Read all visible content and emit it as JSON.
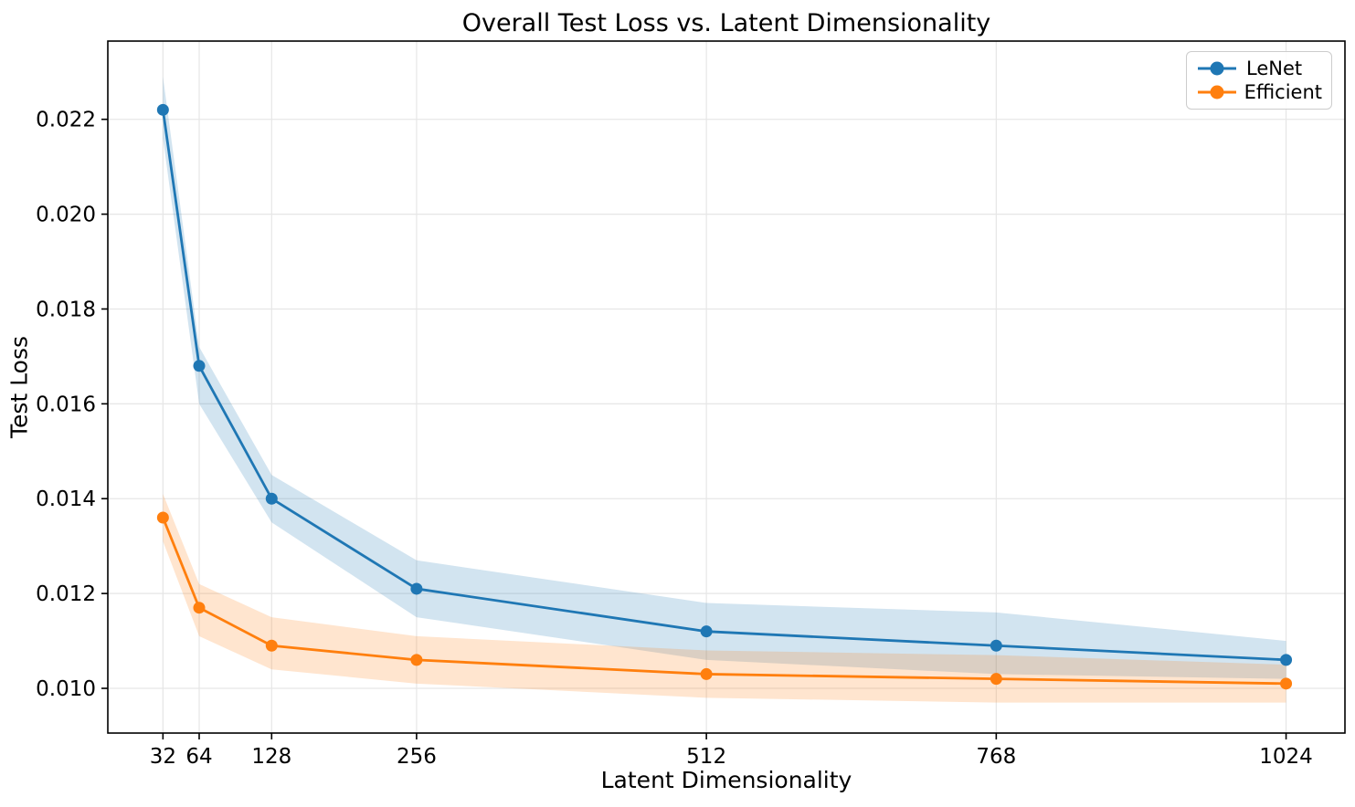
{
  "chart_data": {
    "type": "line",
    "title": "Overall Test Loss vs. Latent Dimensionality",
    "xlabel": "Latent Dimensionality",
    "ylabel": "Test Loss",
    "x": [
      32,
      64,
      128,
      256,
      512,
      768,
      1024
    ],
    "xtick_labels": [
      "32",
      "64",
      "128",
      "256",
      "512",
      "768",
      "1024"
    ],
    "yticks": [
      0.01,
      0.012,
      0.014,
      0.016,
      0.018,
      0.02,
      0.022
    ],
    "ytick_labels": [
      "0.010",
      "0.012",
      "0.014",
      "0.016",
      "0.018",
      "0.020",
      "0.022"
    ],
    "xlim": [
      -16.7,
      1076.0
    ],
    "ylim": [
      0.009057,
      0.02365
    ],
    "grid": true,
    "grid_color": "#e6e6e6",
    "axis_color": "#000000",
    "band_alpha": 0.2,
    "legend_position": "upper right",
    "series": [
      {
        "name": "LeNet",
        "color": "#1f77b4",
        "values": [
          0.0222,
          0.0168,
          0.014,
          0.0121,
          0.0112,
          0.0109,
          0.0106
        ],
        "band_upper": [
          0.0229,
          0.0172,
          0.0145,
          0.0127,
          0.0118,
          0.0116,
          0.011
        ],
        "band_lower": [
          0.0216,
          0.016,
          0.0135,
          0.0115,
          0.0106,
          0.0103,
          0.0102
        ]
      },
      {
        "name": "Efficient",
        "color": "#ff7f0e",
        "values": [
          0.0136,
          0.0117,
          0.0109,
          0.0106,
          0.0103,
          0.0102,
          0.0101
        ],
        "band_upper": [
          0.0141,
          0.0122,
          0.0115,
          0.0111,
          0.0108,
          0.0107,
          0.0105
        ],
        "band_lower": [
          0.0131,
          0.0111,
          0.0104,
          0.0101,
          0.0098,
          0.0097,
          0.0097
        ]
      }
    ]
  }
}
